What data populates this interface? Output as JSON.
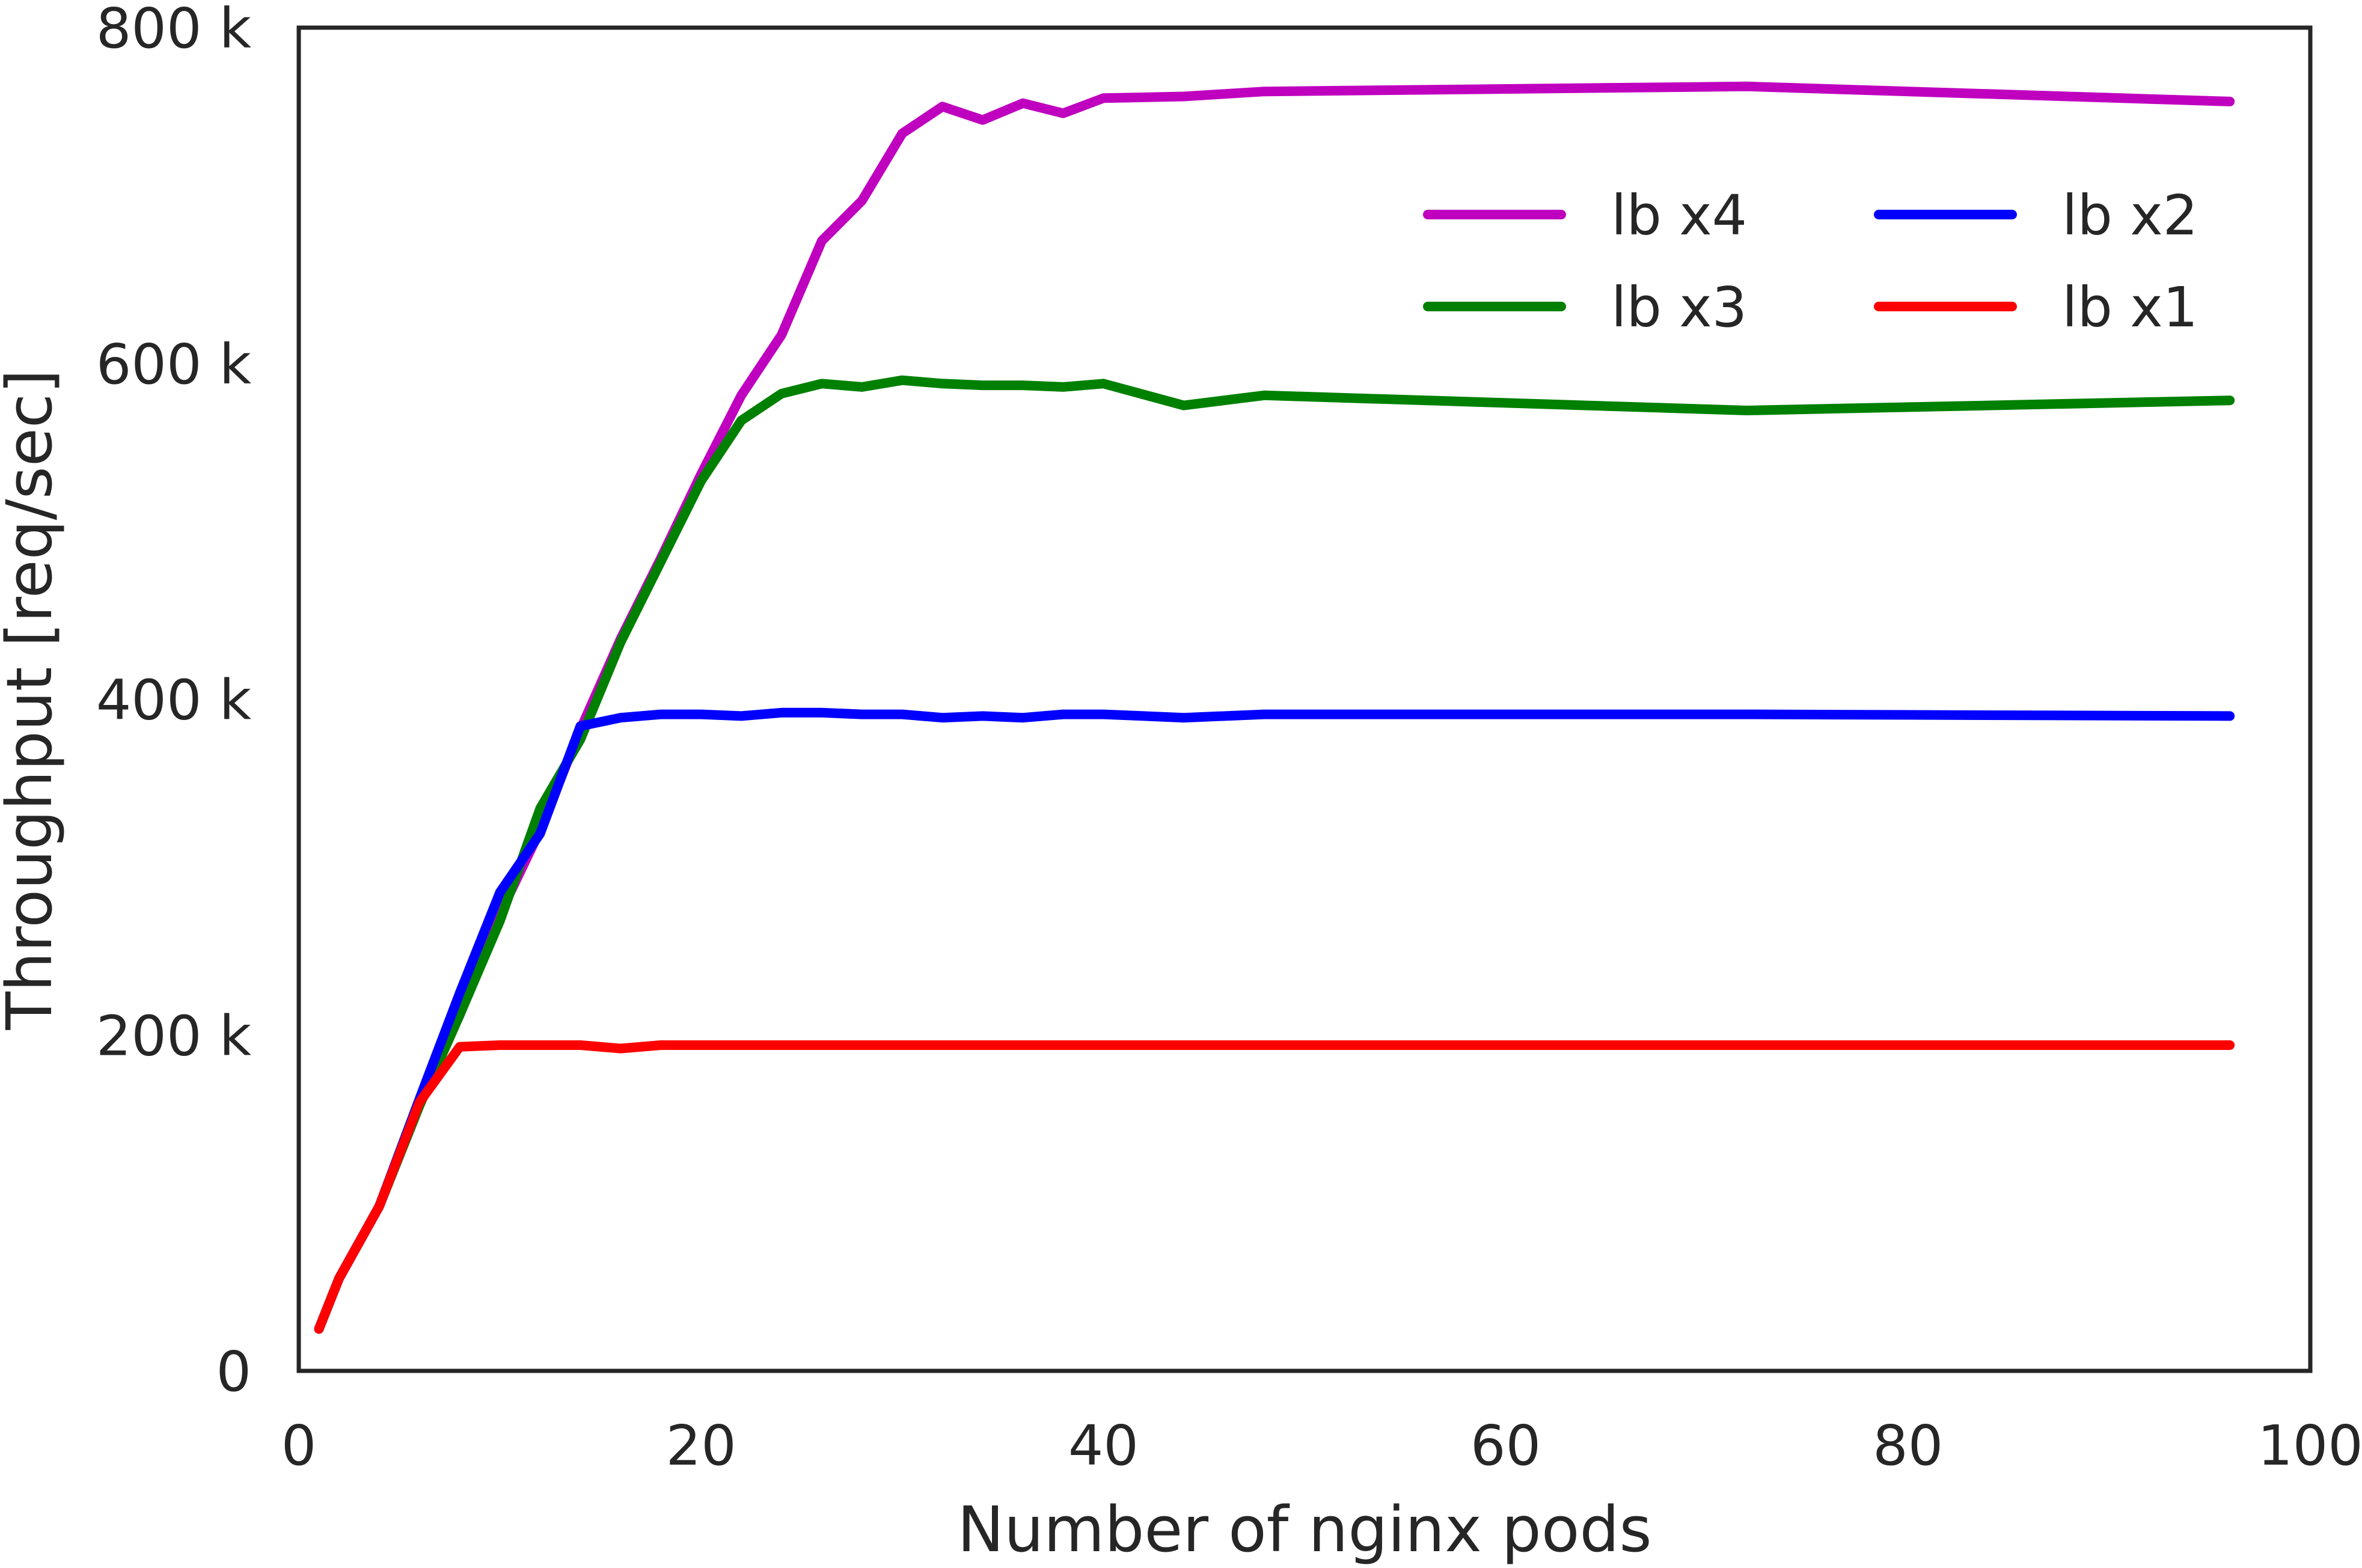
{
  "chart_data": {
    "type": "line",
    "title": "",
    "xlabel": "Number of nginx pods",
    "ylabel": "Throughput [req/sec]",
    "xlim": [
      0,
      100
    ],
    "ylim": [
      0,
      800000
    ],
    "x_ticks": [
      0,
      20,
      40,
      60,
      80,
      100
    ],
    "x_tick_labels": [
      "0",
      "20",
      "40",
      "60",
      "80",
      "100"
    ],
    "y_ticks": [
      0,
      200000,
      400000,
      600000,
      800000
    ],
    "y_tick_labels": [
      "0",
      "200 k",
      "400 k",
      "600 k",
      "800 k"
    ],
    "grid": false,
    "legend_position": "upper-right",
    "legend_columns": 2,
    "series": [
      {
        "name": "lb x4",
        "color": "#bf00bf",
        "x": [
          1,
          2,
          4,
          6,
          8,
          10,
          12,
          14,
          16,
          18,
          20,
          22,
          24,
          26,
          28,
          30,
          32,
          34,
          36,
          38,
          40,
          44,
          48,
          72,
          96
        ],
        "y": [
          25000,
          55000,
          98000,
          158000,
          212000,
          272000,
          322000,
          382000,
          436000,
          484000,
          534000,
          581000,
          617000,
          673000,
          697000,
          737000,
          753000,
          745000,
          755000,
          749000,
          758000,
          759000,
          762000,
          765000,
          756000
        ]
      },
      {
        "name": "lb x3",
        "color": "#008000",
        "x": [
          1,
          2,
          4,
          6,
          8,
          10,
          12,
          14,
          16,
          18,
          20,
          22,
          24,
          26,
          28,
          30,
          32,
          34,
          36,
          38,
          40,
          44,
          48,
          72,
          96
        ],
        "y": [
          25000,
          55000,
          98000,
          158000,
          212000,
          268000,
          335000,
          376000,
          434000,
          482000,
          530000,
          566000,
          582000,
          588000,
          586000,
          590000,
          588000,
          587000,
          587000,
          586000,
          588000,
          575000,
          581000,
          572000,
          578000
        ]
      },
      {
        "name": "lb x2",
        "color": "#0000ff",
        "x": [
          1,
          2,
          4,
          6,
          8,
          10,
          12,
          14,
          16,
          18,
          20,
          22,
          24,
          26,
          28,
          30,
          32,
          34,
          36,
          38,
          40,
          44,
          48,
          72,
          96
        ],
        "y": [
          25000,
          55000,
          98000,
          162000,
          225000,
          285000,
          320000,
          384000,
          389000,
          391000,
          391000,
          390000,
          392000,
          392000,
          391000,
          391000,
          389000,
          390000,
          389000,
          391000,
          391000,
          389000,
          391000,
          391000,
          390000
        ]
      },
      {
        "name": "lb x1",
        "color": "#ff0000",
        "x": [
          1,
          2,
          4,
          6,
          8,
          10,
          12,
          14,
          16,
          18,
          20,
          22,
          24,
          26,
          28,
          30,
          32,
          34,
          36,
          38,
          40,
          44,
          48,
          72,
          96
        ],
        "y": [
          25000,
          55000,
          98000,
          160000,
          193000,
          194000,
          194000,
          194000,
          192000,
          194000,
          194000,
          194000,
          194000,
          194000,
          194000,
          194000,
          194000,
          194000,
          194000,
          194000,
          194000,
          194000,
          194000,
          194000,
          194000
        ]
      }
    ]
  }
}
